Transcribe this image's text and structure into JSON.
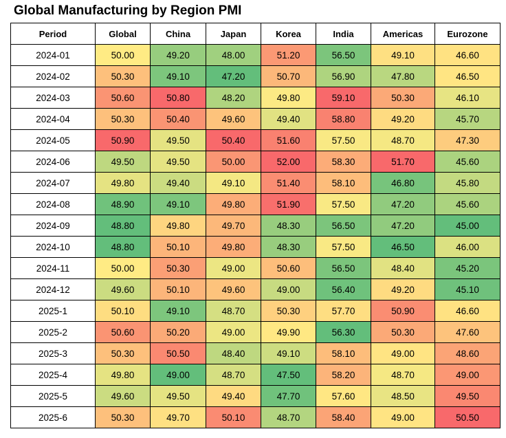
{
  "chart_data": {
    "type": "table",
    "title": "Global Manufacturing by Region PMI",
    "columns": [
      "Period",
      "Global",
      "China",
      "Japan",
      "Korea",
      "India",
      "Americas",
      "Eurozone"
    ],
    "rows": [
      {
        "period": "2024-01",
        "values": [
          "50.00",
          "49.20",
          "48.00",
          "51.20",
          "56.50",
          "49.10",
          "46.60"
        ]
      },
      {
        "period": "2024-02",
        "values": [
          "50.30",
          "49.10",
          "47.20",
          "50.70",
          "56.90",
          "47.80",
          "46.50"
        ]
      },
      {
        "period": "2024-03",
        "values": [
          "50.60",
          "50.80",
          "48.20",
          "49.80",
          "59.10",
          "50.30",
          "46.10"
        ]
      },
      {
        "period": "2024-04",
        "values": [
          "50.30",
          "50.40",
          "49.60",
          "49.40",
          "58.80",
          "49.20",
          "45.70"
        ]
      },
      {
        "period": "2024-05",
        "values": [
          "50.90",
          "49.50",
          "50.40",
          "51.60",
          "57.50",
          "48.70",
          "47.30"
        ]
      },
      {
        "period": "2024-06",
        "values": [
          "49.50",
          "49.50",
          "50.00",
          "52.00",
          "58.30",
          "51.70",
          "45.60"
        ]
      },
      {
        "period": "2024-07",
        "values": [
          "49.80",
          "49.40",
          "49.10",
          "51.40",
          "58.10",
          "46.80",
          "45.80"
        ]
      },
      {
        "period": "2024-08",
        "values": [
          "48.90",
          "49.10",
          "49.80",
          "51.90",
          "57.50",
          "47.20",
          "45.60"
        ]
      },
      {
        "period": "2024-09",
        "values": [
          "48.80",
          "49.80",
          "49.70",
          "48.30",
          "56.50",
          "47.20",
          "45.00"
        ]
      },
      {
        "period": "2024-10",
        "values": [
          "48.80",
          "50.10",
          "49.80",
          "48.30",
          "57.50",
          "46.50",
          "46.00"
        ]
      },
      {
        "period": "2024-11",
        "values": [
          "50.00",
          "50.30",
          "49.00",
          "50.60",
          "56.50",
          "48.40",
          "45.20"
        ]
      },
      {
        "period": "2024-12",
        "values": [
          "49.60",
          "50.10",
          "49.60",
          "49.00",
          "56.40",
          "49.20",
          "45.10"
        ]
      },
      {
        "period": "2025-1",
        "values": [
          "50.10",
          "49.10",
          "48.70",
          "50.30",
          "57.70",
          "50.90",
          "46.60"
        ]
      },
      {
        "period": "2025-2",
        "values": [
          "50.60",
          "50.20",
          "49.00",
          "49.90",
          "56.30",
          "50.30",
          "47.60"
        ]
      },
      {
        "period": "2025-3",
        "values": [
          "50.30",
          "50.50",
          "48.40",
          "49.10",
          "58.10",
          "49.00",
          "48.60"
        ]
      },
      {
        "period": "2025-4",
        "values": [
          "49.80",
          "49.00",
          "48.70",
          "47.50",
          "58.20",
          "48.70",
          "49.00"
        ]
      },
      {
        "period": "2025-5",
        "values": [
          "49.60",
          "49.50",
          "49.40",
          "47.70",
          "57.60",
          "48.50",
          "49.50"
        ]
      },
      {
        "period": "2025-6",
        "values": [
          "50.30",
          "49.70",
          "50.10",
          "48.70",
          "58.40",
          "49.00",
          "50.50"
        ]
      }
    ],
    "color_scale": {
      "method": "per-column",
      "low": "#63be7b",
      "mid": "#ffeb84",
      "high": "#f8696b"
    }
  }
}
